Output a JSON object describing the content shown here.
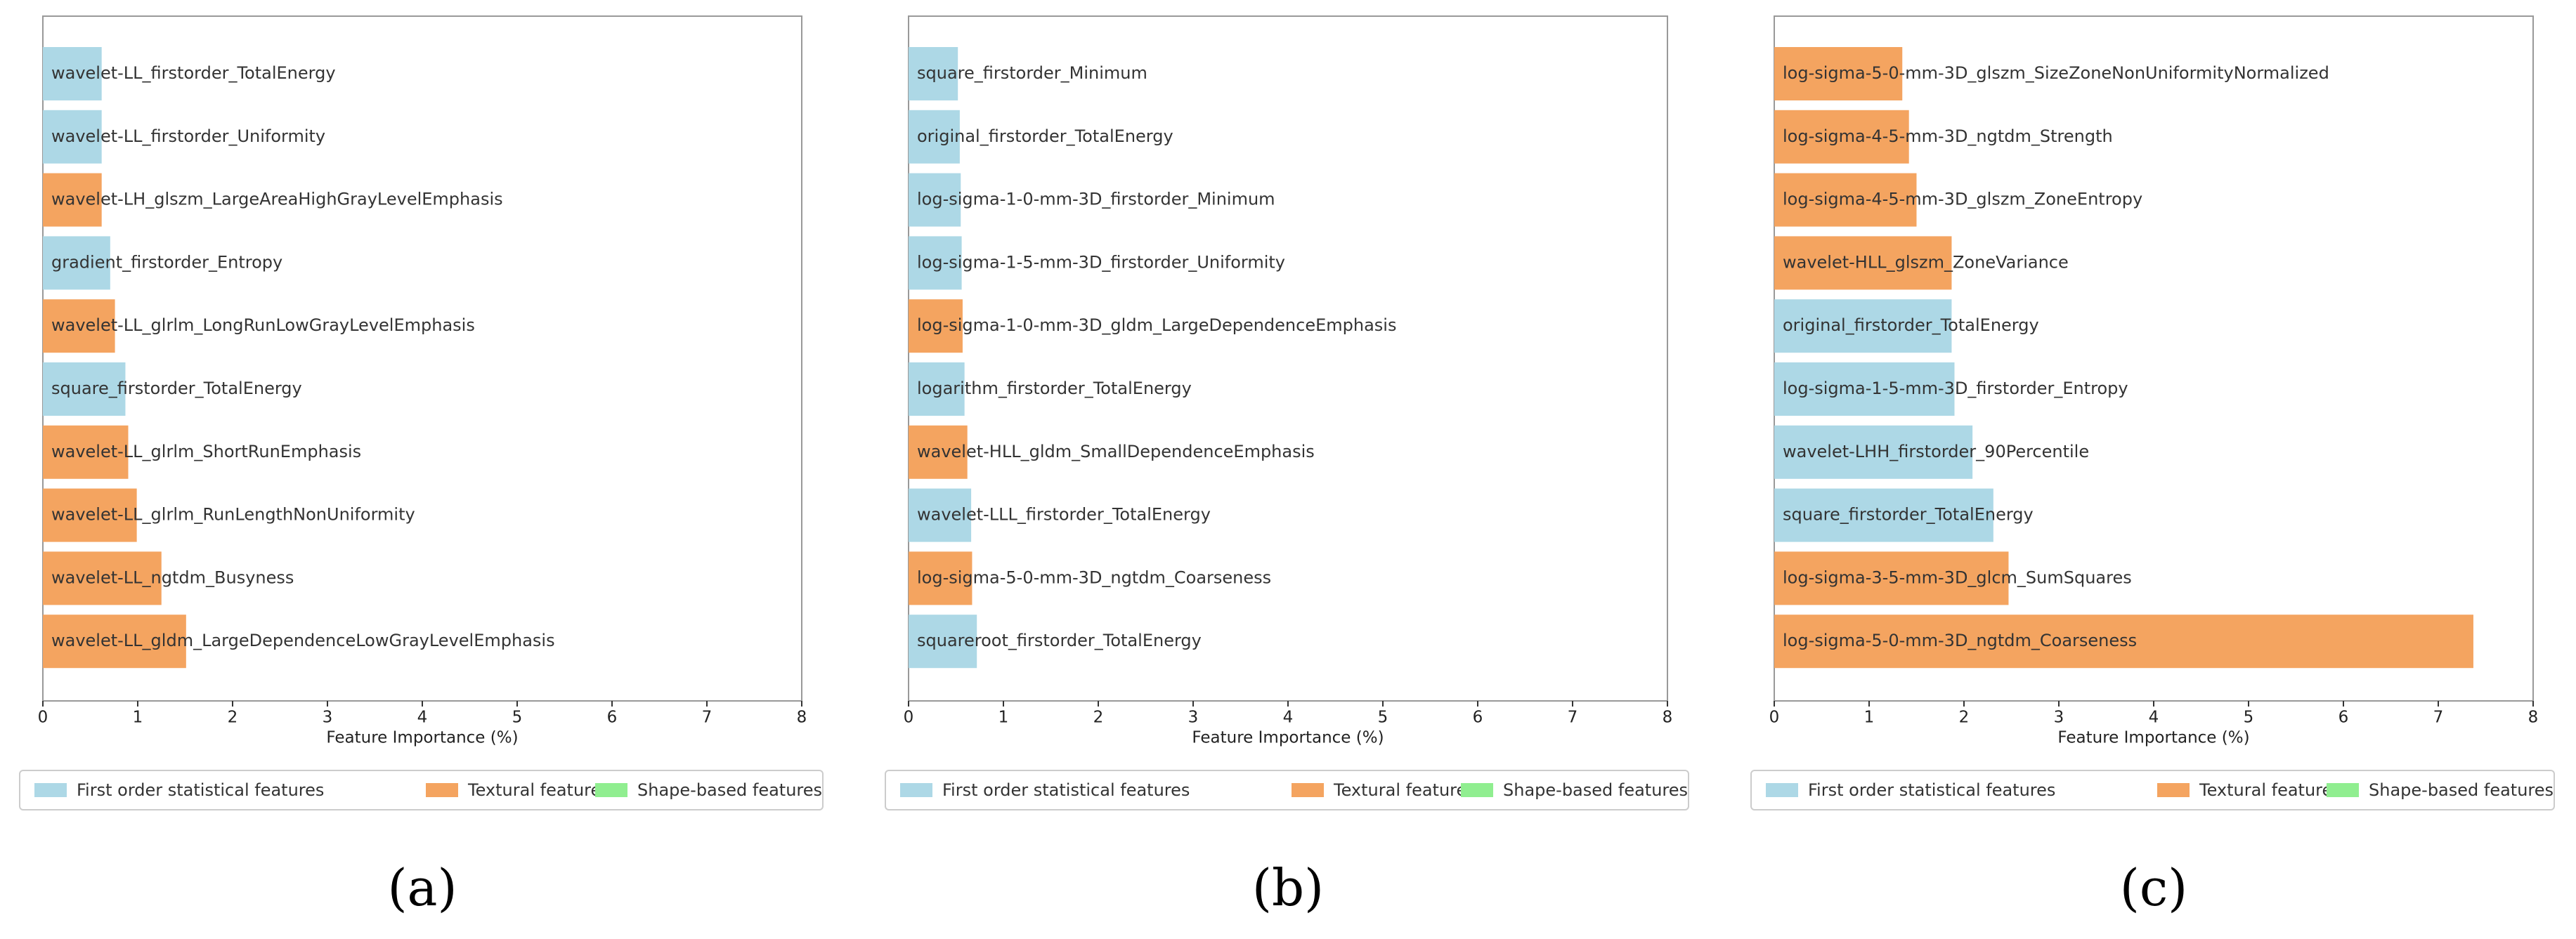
{
  "chart_data": [
    {
      "type": "bar",
      "orientation": "horizontal",
      "panel_label": "(a)",
      "xlabel": "Feature Importance (%)",
      "categories": [
        "wavelet-LL_firstorder_TotalEnergy",
        "wavelet-LL_firstorder_Uniformity",
        "wavelet-LH_glszm_LargeAreaHighGrayLevelEmphasis",
        "gradient_firstorder_Entropy",
        "wavelet-LL_glrlm_LongRunLowGrayLevelEmphasis",
        "square_firstorder_TotalEnergy",
        "wavelet-LL_glrlm_ShortRunEmphasis",
        "wavelet-LL_glrlm_RunLengthNonUniformity",
        "wavelet-LL_ngtdm_Busyness",
        "wavelet-LL_gldm_LargeDependenceLowGrayLevelEmphasis"
      ],
      "series": [
        {
          "name": "First order statistical features",
          "color": "#add8e6",
          "values": [
            0.62,
            0.62,
            null,
            0.71,
            null,
            0.87,
            null,
            null,
            null,
            null
          ]
        },
        {
          "name": "Textural features",
          "color": "#f4a460",
          "values": [
            null,
            null,
            0.62,
            null,
            0.76,
            null,
            0.9,
            0.99,
            1.25,
            1.51
          ]
        },
        {
          "name": "Shape-based features",
          "color": "#90ee90",
          "values": [
            null,
            null,
            null,
            null,
            null,
            null,
            null,
            null,
            null,
            null
          ]
        }
      ],
      "xlim": [
        0,
        8
      ],
      "xticks": [
        0,
        1,
        2,
        3,
        4,
        5,
        6,
        7,
        8
      ],
      "grid": false,
      "legend": "below"
    },
    {
      "type": "bar",
      "orientation": "horizontal",
      "panel_label": "(b)",
      "xlabel": "Feature Importance (%)",
      "categories": [
        "square_firstorder_Minimum",
        "original_firstorder_TotalEnergy",
        "log-sigma-1-0-mm-3D_firstorder_Minimum",
        "log-sigma-1-5-mm-3D_firstorder_Uniformity",
        "log-sigma-1-0-mm-3D_gldm_LargeDependenceEmphasis",
        "logarithm_firstorder_TotalEnergy",
        "wavelet-HLL_gldm_SmallDependenceEmphasis",
        "wavelet-LLL_firstorder_TotalEnergy",
        "log-sigma-5-0-mm-3D_ngtdm_Coarseness",
        "squareroot_firstorder_TotalEnergy"
      ],
      "series": [
        {
          "name": "First order statistical features",
          "color": "#add8e6",
          "values": [
            0.52,
            0.54,
            0.55,
            0.56,
            null,
            0.59,
            null,
            0.66,
            null,
            0.72
          ]
        },
        {
          "name": "Textural features",
          "color": "#f4a460",
          "values": [
            null,
            null,
            null,
            null,
            0.57,
            null,
            0.62,
            null,
            0.67,
            null
          ]
        },
        {
          "name": "Shape-based features",
          "color": "#90ee90",
          "values": [
            null,
            null,
            null,
            null,
            null,
            null,
            null,
            null,
            null,
            null
          ]
        }
      ],
      "xlim": [
        0,
        8
      ],
      "xticks": [
        0,
        1,
        2,
        3,
        4,
        5,
        6,
        7,
        8
      ],
      "grid": false,
      "legend": "below"
    },
    {
      "type": "bar",
      "orientation": "horizontal",
      "panel_label": "(c)",
      "xlabel": "Feature Importance (%)",
      "categories": [
        "log-sigma-5-0-mm-3D_glszm_SizeZoneNonUniformityNormalized",
        "log-sigma-4-5-mm-3D_ngtdm_Strength",
        "log-sigma-4-5-mm-3D_glszm_ZoneEntropy",
        "wavelet-HLL_glszm_ZoneVariance",
        "original_firstorder_TotalEnergy",
        "log-sigma-1-5-mm-3D_firstorder_Entropy",
        "wavelet-LHH_firstorder_90Percentile",
        "square_firstorder_TotalEnergy",
        "log-sigma-3-5-mm-3D_glcm_SumSquares",
        "log-sigma-5-0-mm-3D_ngtdm_Coarseness"
      ],
      "series": [
        {
          "name": "First order statistical features",
          "color": "#add8e6",
          "values": [
            null,
            null,
            null,
            null,
            1.87,
            1.9,
            2.09,
            2.31,
            null,
            null
          ]
        },
        {
          "name": "Textural features",
          "color": "#f4a460",
          "values": [
            1.35,
            1.42,
            1.5,
            1.87,
            null,
            null,
            null,
            null,
            2.47,
            7.37
          ]
        },
        {
          "name": "Shape-based features",
          "color": "#90ee90",
          "values": [
            null,
            null,
            null,
            null,
            null,
            null,
            null,
            null,
            null,
            null
          ]
        }
      ],
      "xlim": [
        0,
        8
      ],
      "xticks": [
        0,
        1,
        2,
        3,
        4,
        5,
        6,
        7,
        8
      ],
      "grid": false,
      "legend": "below"
    }
  ]
}
